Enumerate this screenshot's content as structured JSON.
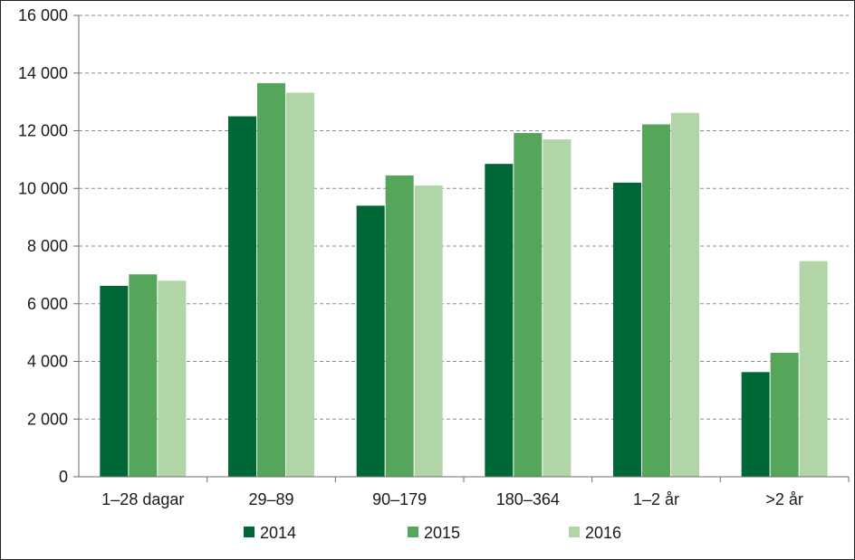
{
  "chart_data": {
    "type": "bar",
    "categories": [
      "1–28 dagar",
      "29–89",
      "90–179",
      "180–364",
      "1–2 år",
      ">2 år"
    ],
    "series": [
      {
        "name": "2014",
        "color": "#006837",
        "values": [
          6620,
          12500,
          9400,
          10850,
          10200,
          3630
        ]
      },
      {
        "name": "2015",
        "color": "#55a65a",
        "values": [
          7020,
          13650,
          10450,
          11920,
          12220,
          4300
        ]
      },
      {
        "name": "2016",
        "color": "#b1d5a7",
        "values": [
          6800,
          13320,
          10100,
          11700,
          12620,
          7480
        ]
      }
    ],
    "yticks": [
      "0",
      "2 000",
      "4 000",
      "6 000",
      "8 000",
      "10 000",
      "12 000",
      "14 000",
      "16 000"
    ],
    "ylim": [
      0,
      16000
    ],
    "grid": "dashed horizontal",
    "legend_position": "bottom"
  }
}
